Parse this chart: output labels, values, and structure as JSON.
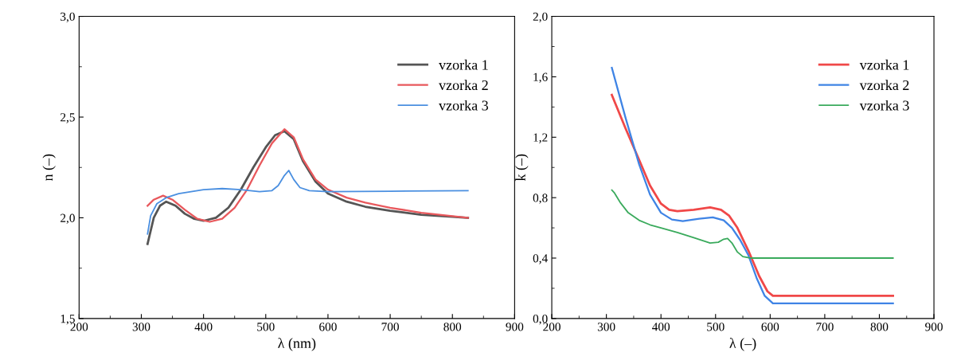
{
  "chart_data": [
    {
      "type": "line",
      "xlabel": "λ (nm)",
      "ylabel": "n (–)",
      "xlim": [
        200,
        900
      ],
      "xticks": [
        200,
        300,
        400,
        500,
        600,
        700,
        800,
        900
      ],
      "ylim": [
        1.5,
        3.0
      ],
      "yticks": [
        {
          "value": 1.5,
          "label": "1,5"
        },
        {
          "value": 2.0,
          "label": "2,0"
        },
        {
          "value": 2.5,
          "label": "2,5"
        },
        {
          "value": 3.0,
          "label": "3,0"
        }
      ],
      "grid": false,
      "legend": "top right",
      "series": [
        {
          "name": "vzorka 1",
          "color": "#555555",
          "x": [
            310,
            320,
            330,
            340,
            355,
            370,
            385,
            400,
            420,
            440,
            460,
            480,
            500,
            515,
            530,
            545,
            560,
            580,
            600,
            630,
            660,
            700,
            750,
            800,
            825
          ],
          "values": [
            1.87,
            2.0,
            2.06,
            2.08,
            2.06,
            2.02,
            1.995,
            1.985,
            2.0,
            2.05,
            2.14,
            2.25,
            2.35,
            2.41,
            2.43,
            2.39,
            2.28,
            2.18,
            2.12,
            2.08,
            2.055,
            2.035,
            2.015,
            2.005,
            2.0
          ]
        },
        {
          "name": "vzorka 2",
          "color": "#e8585c",
          "x": [
            310,
            320,
            335,
            350,
            370,
            390,
            410,
            430,
            450,
            470,
            490,
            510,
            530,
            545,
            560,
            580,
            600,
            630,
            660,
            700,
            750,
            800,
            825
          ],
          "values": [
            2.06,
            2.09,
            2.11,
            2.09,
            2.04,
            1.995,
            1.98,
            1.995,
            2.05,
            2.14,
            2.26,
            2.37,
            2.44,
            2.4,
            2.29,
            2.19,
            2.14,
            2.1,
            2.075,
            2.05,
            2.025,
            2.008,
            2.0
          ]
        },
        {
          "name": "vzorka 3",
          "color": "#4a8fe0",
          "x": [
            310,
            315,
            325,
            340,
            360,
            400,
            430,
            460,
            490,
            510,
            520,
            530,
            537,
            545,
            555,
            570,
            600,
            700,
            825
          ],
          "values": [
            1.92,
            2.01,
            2.07,
            2.1,
            2.12,
            2.14,
            2.145,
            2.14,
            2.13,
            2.135,
            2.16,
            2.21,
            2.235,
            2.19,
            2.15,
            2.135,
            2.13,
            2.132,
            2.135
          ]
        }
      ]
    },
    {
      "type": "line",
      "xlabel": "λ (–)",
      "ylabel": "k (–)",
      "xlim": [
        200,
        900
      ],
      "xticks": [
        200,
        300,
        400,
        500,
        600,
        700,
        800,
        900
      ],
      "ylim": [
        0.0,
        2.0
      ],
      "yticks": [
        {
          "value": 0.0,
          "label": "0,0"
        },
        {
          "value": 0.4,
          "label": "0,4"
        },
        {
          "value": 0.8,
          "label": "0,8"
        },
        {
          "value": 1.2,
          "label": "1,2"
        },
        {
          "value": 1.6,
          "label": "1,6"
        },
        {
          "value": 2.0,
          "label": "2,0"
        }
      ],
      "grid": false,
      "legend": "top right",
      "series": [
        {
          "name": "vzorka 1",
          "color": "#f04848",
          "x": [
            310,
            335,
            360,
            380,
            400,
            415,
            430,
            460,
            490,
            510,
            525,
            540,
            560,
            580,
            595,
            605,
            650,
            825
          ],
          "values": [
            1.48,
            1.26,
            1.05,
            0.88,
            0.76,
            0.72,
            0.71,
            0.72,
            0.735,
            0.72,
            0.68,
            0.6,
            0.45,
            0.28,
            0.18,
            0.15,
            0.15,
            0.15
          ]
        },
        {
          "name": "vzorka 2",
          "color": "#3f84e5",
          "x": [
            310,
            335,
            360,
            380,
            400,
            420,
            440,
            470,
            495,
            515,
            530,
            545,
            560,
            575,
            590,
            605,
            650,
            825
          ],
          "values": [
            1.66,
            1.33,
            1.02,
            0.82,
            0.7,
            0.655,
            0.645,
            0.66,
            0.67,
            0.65,
            0.6,
            0.52,
            0.42,
            0.27,
            0.15,
            0.1,
            0.1,
            0.1
          ]
        },
        {
          "name": "vzorka 3",
          "color": "#3aaa5c",
          "x": [
            310,
            315,
            325,
            340,
            360,
            380,
            400,
            430,
            460,
            490,
            505,
            515,
            522,
            530,
            540,
            550,
            565,
            590,
            825
          ],
          "values": [
            0.85,
            0.83,
            0.77,
            0.7,
            0.65,
            0.62,
            0.6,
            0.57,
            0.535,
            0.5,
            0.505,
            0.525,
            0.53,
            0.5,
            0.44,
            0.41,
            0.4,
            0.4,
            0.4
          ]
        }
      ]
    }
  ]
}
